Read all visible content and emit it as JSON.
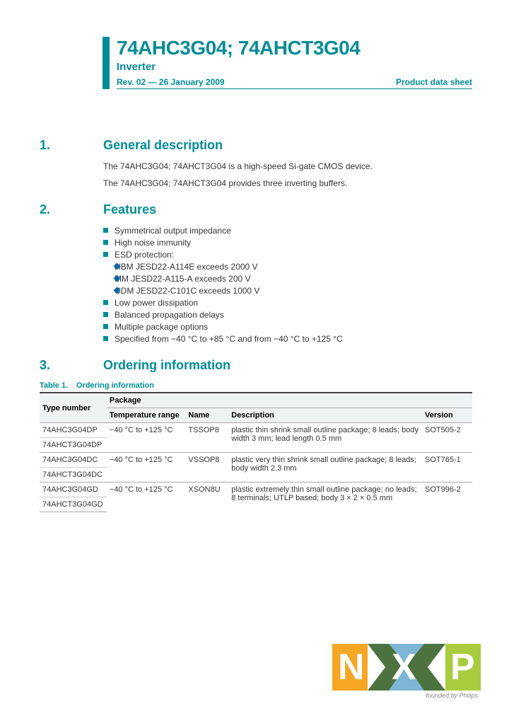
{
  "header": {
    "title": "74AHC3G04; 74AHCT3G04",
    "subtitle": "Inverter",
    "rev": "Rev. 02 — 26 January 2009",
    "doctype": "Product data sheet"
  },
  "colors": {
    "brand_teal": "#008c95",
    "bullet_blue": "#0066a4",
    "logo_orange": "#f5a623",
    "logo_blue": "#7fb5d5",
    "logo_green": "#a9cc3f",
    "text": "#333333"
  },
  "sections": {
    "s1": {
      "num": "1.",
      "title": "General description"
    },
    "s2": {
      "num": "2.",
      "title": "Features"
    },
    "s3": {
      "num": "3.",
      "title": "Ordering information"
    }
  },
  "general": {
    "p1": "The 74AHC3G04; 74AHCT3G04 is a high-speed Si-gate CMOS device.",
    "p2": "The 74AHC3G04; 74AHCT3G04 provides three inverting buffers."
  },
  "features": [
    {
      "level": 1,
      "text": "Symmetrical output impedance"
    },
    {
      "level": 1,
      "text": "High noise immunity"
    },
    {
      "level": 1,
      "text": "ESD protection:"
    },
    {
      "level": 2,
      "text": "HBM JESD22-A114E exceeds 2000 V"
    },
    {
      "level": 2,
      "text": "MM JESD22-A115-A exceeds 200 V"
    },
    {
      "level": 2,
      "text": "CDM JESD22-C101C exceeds 1000 V"
    },
    {
      "level": 1,
      "text": "Low power dissipation"
    },
    {
      "level": 1,
      "text": "Balanced propagation delays"
    },
    {
      "level": 1,
      "text": "Multiple package options"
    },
    {
      "level": 1,
      "text": "Specified from −40 °C to +85 °C and from −40 °C to +125 °C"
    }
  ],
  "table": {
    "caption_num": "Table 1.",
    "caption_title": "Ordering information",
    "head_main": {
      "c0": "Type number",
      "c1": "Package"
    },
    "head_sub": {
      "c1": "Temperature range",
      "c2": "Name",
      "c3": "Description",
      "c4": "Version"
    },
    "rows": [
      {
        "type": "74AHC3G04DP",
        "temp": "−40 °C to +125 °C",
        "name": "TSSOP8",
        "desc": "plastic thin shrink small outline package; 8 leads; body width 3 mm; lead length 0.5 mm",
        "ver": "SOT505-2"
      },
      {
        "type": "74AHCT3G04DP",
        "temp": "",
        "name": "",
        "desc": "",
        "ver": ""
      },
      {
        "type": "74AHC3G04DC",
        "temp": "−40 °C to +125 °C",
        "name": "VSSOP8",
        "desc": "plastic very thin shrink small outline package; 8 leads; body width 2.3 mm",
        "ver": "SOT765-1"
      },
      {
        "type": "74AHCT3G04DC",
        "temp": "",
        "name": "",
        "desc": "",
        "ver": ""
      },
      {
        "type": "74AHC3G04GD",
        "temp": "−40 °C to +125 °C",
        "name": "XSON8U",
        "desc": "plastic extremely thin small outline package; no leads; 8 terminals; UTLP based; body 3 × 2 × 0.5 mm",
        "ver": "SOT996-2"
      },
      {
        "type": "74AHCT3G04GD",
        "temp": "",
        "name": "",
        "desc": "",
        "ver": ""
      }
    ]
  },
  "footer": {
    "tagline": "founded by Philips"
  }
}
